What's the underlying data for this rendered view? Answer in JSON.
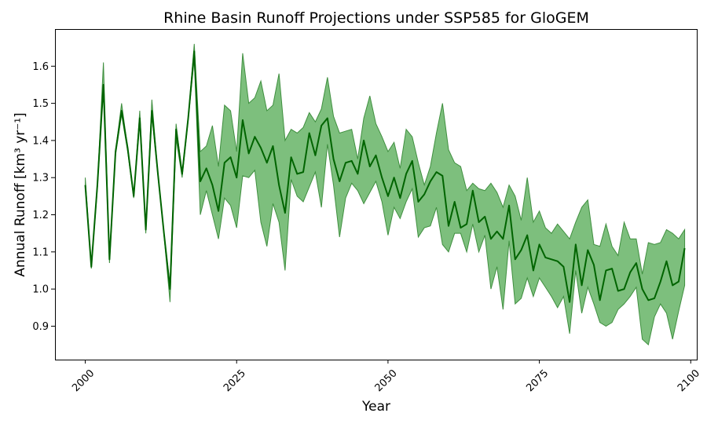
{
  "chart_data": {
    "type": "line",
    "title": "Rhine Basin Runoff Projections under SSP585 for GloGEM",
    "xlabel": "Year",
    "ylabel": "Annual Runoff [km³ yr⁻¹]",
    "xlim": [
      1995,
      2101
    ],
    "ylim": [
      0.81,
      1.7
    ],
    "xticks": [
      2000,
      2025,
      2050,
      2075,
      2100
    ],
    "yticks": [
      0.9,
      1.0,
      1.1,
      1.2,
      1.3,
      1.4,
      1.5,
      1.6
    ],
    "xtick_labels": [
      "2000",
      "2025",
      "2050",
      "2075",
      "2100"
    ],
    "ytick_labels": [
      "0.9",
      "1.0",
      "1.1",
      "1.2",
      "1.3",
      "1.4",
      "1.5",
      "1.6"
    ],
    "grid": false,
    "legend": "none",
    "colors": {
      "line": "#006400",
      "band": "#7dbf7d",
      "band_edge": "#3f8f3f"
    },
    "series": [
      {
        "x": [
          2000,
          2001,
          2002,
          2003,
          2004,
          2005,
          2006,
          2007,
          2008,
          2009,
          2010,
          2011,
          2012,
          2013,
          2014,
          2015,
          2016,
          2017,
          2018,
          2019,
          2020,
          2021,
          2022,
          2023,
          2024,
          2025,
          2026,
          2027,
          2028,
          2029,
          2030,
          2031,
          2032,
          2033,
          2034,
          2035,
          2036,
          2037,
          2038,
          2039,
          2040,
          2041,
          2042,
          2043,
          2044,
          2045,
          2046,
          2047,
          2048,
          2049,
          2050,
          2051,
          2052,
          2053,
          2054,
          2055,
          2056,
          2057,
          2058,
          2059,
          2060,
          2061,
          2062,
          2063,
          2064,
          2065,
          2066,
          2067,
          2068,
          2069,
          2070,
          2071,
          2072,
          2073,
          2074,
          2075,
          2076,
          2077,
          2078,
          2079,
          2080,
          2081,
          2082,
          2083,
          2084,
          2085,
          2086,
          2087,
          2088,
          2089,
          2090,
          2091,
          2092,
          2093,
          2094,
          2095,
          2096,
          2097,
          2098,
          2099
        ],
        "mean": [
          1.28,
          1.06,
          1.28,
          1.55,
          1.08,
          1.37,
          1.48,
          1.38,
          1.25,
          1.46,
          1.16,
          1.48,
          1.31,
          1.15,
          1.0,
          1.43,
          1.31,
          1.46,
          1.64,
          1.29,
          1.325,
          1.28,
          1.21,
          1.34,
          1.355,
          1.3,
          1.455,
          1.365,
          1.41,
          1.38,
          1.34,
          1.385,
          1.28,
          1.205,
          1.355,
          1.31,
          1.315,
          1.42,
          1.36,
          1.44,
          1.46,
          1.35,
          1.29,
          1.34,
          1.345,
          1.31,
          1.4,
          1.33,
          1.36,
          1.3,
          1.25,
          1.3,
          1.245,
          1.31,
          1.345,
          1.235,
          1.255,
          1.29,
          1.315,
          1.305,
          1.17,
          1.235,
          1.165,
          1.175,
          1.265,
          1.18,
          1.195,
          1.135,
          1.155,
          1.135,
          1.225,
          1.08,
          1.105,
          1.145,
          1.05,
          1.12,
          1.085,
          1.08,
          1.075,
          1.06,
          0.965,
          1.12,
          1.01,
          1.105,
          1.065,
          0.97,
          1.05,
          1.055,
          0.995,
          1.0,
          1.045,
          1.07,
          1.0,
          0.97,
          0.975,
          1.02,
          1.075,
          1.01,
          1.02,
          1.11
        ],
        "upper": [
          1.3,
          1.06,
          1.28,
          1.61,
          1.08,
          1.37,
          1.5,
          1.38,
          1.25,
          1.48,
          1.16,
          1.51,
          1.31,
          1.15,
          1.01,
          1.445,
          1.31,
          1.46,
          1.66,
          1.37,
          1.385,
          1.44,
          1.33,
          1.495,
          1.48,
          1.37,
          1.635,
          1.5,
          1.515,
          1.56,
          1.48,
          1.495,
          1.58,
          1.4,
          1.43,
          1.42,
          1.435,
          1.475,
          1.45,
          1.485,
          1.57,
          1.465,
          1.42,
          1.425,
          1.43,
          1.35,
          1.46,
          1.52,
          1.445,
          1.41,
          1.37,
          1.395,
          1.325,
          1.43,
          1.41,
          1.34,
          1.28,
          1.33,
          1.42,
          1.5,
          1.375,
          1.34,
          1.33,
          1.265,
          1.285,
          1.27,
          1.265,
          1.285,
          1.26,
          1.22,
          1.28,
          1.25,
          1.185,
          1.3,
          1.18,
          1.21,
          1.165,
          1.15,
          1.175,
          1.155,
          1.135,
          1.18,
          1.22,
          1.24,
          1.12,
          1.115,
          1.175,
          1.115,
          1.09,
          1.18,
          1.135,
          1.135,
          1.04,
          1.125,
          1.12,
          1.125,
          1.16,
          1.15,
          1.135,
          1.16
        ],
        "lower": [
          1.28,
          1.055,
          1.27,
          1.545,
          1.07,
          1.36,
          1.47,
          1.37,
          1.245,
          1.45,
          1.15,
          1.47,
          1.305,
          1.145,
          0.965,
          1.405,
          1.3,
          1.455,
          1.62,
          1.2,
          1.265,
          1.2,
          1.135,
          1.245,
          1.225,
          1.165,
          1.305,
          1.3,
          1.32,
          1.18,
          1.115,
          1.23,
          1.18,
          1.05,
          1.295,
          1.25,
          1.235,
          1.275,
          1.315,
          1.22,
          1.39,
          1.28,
          1.14,
          1.245,
          1.285,
          1.265,
          1.23,
          1.26,
          1.29,
          1.235,
          1.145,
          1.22,
          1.19,
          1.235,
          1.27,
          1.14,
          1.165,
          1.17,
          1.22,
          1.12,
          1.1,
          1.15,
          1.15,
          1.1,
          1.175,
          1.1,
          1.145,
          1.0,
          1.06,
          0.945,
          1.13,
          0.96,
          0.975,
          1.03,
          0.98,
          1.03,
          1.005,
          0.98,
          0.95,
          0.98,
          0.88,
          1.05,
          0.935,
          1.005,
          0.96,
          0.91,
          0.9,
          0.91,
          0.945,
          0.96,
          0.98,
          1.005,
          0.865,
          0.85,
          0.925,
          0.96,
          0.935,
          0.865,
          0.94,
          1.01
        ]
      }
    ]
  }
}
